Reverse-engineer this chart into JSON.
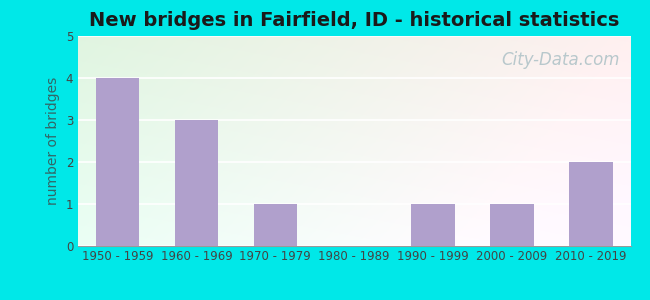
{
  "title": "New bridges in Fairfield, ID - historical statistics",
  "ylabel": "number of bridges",
  "categories": [
    "1950 - 1959",
    "1960 - 1969",
    "1970 - 1979",
    "1980 - 1989",
    "1990 - 1999",
    "2000 - 2009",
    "2010 - 2019"
  ],
  "values": [
    4,
    3,
    1,
    0,
    1,
    1,
    2
  ],
  "bar_color": "#b0a0cc",
  "background_outer": "#00e8e8",
  "ylim": [
    0,
    5
  ],
  "yticks": [
    0,
    1,
    2,
    3,
    4,
    5
  ],
  "title_fontsize": 14,
  "axis_label_fontsize": 10,
  "tick_fontsize": 8.5,
  "watermark_text": "City-Data.com",
  "watermark_color": "#b8c8cc",
  "watermark_fontsize": 12,
  "fig_width": 6.5,
  "fig_height": 3.0,
  "fig_dpi": 100
}
